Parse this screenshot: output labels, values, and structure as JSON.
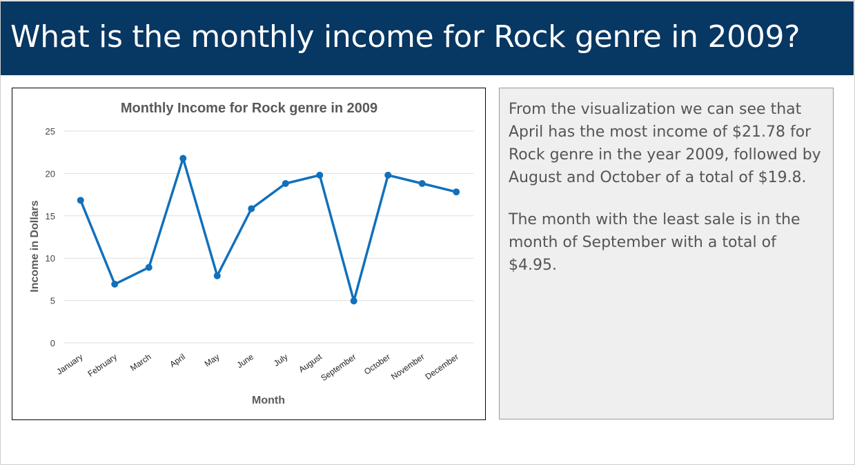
{
  "slide": {
    "title": "What is the monthly income for Rock genre in 2009?"
  },
  "panel": {
    "paragraph_1": "From the visualization we can see that April has the most income of $21.78 for Rock genre in the year 2009, followed by August and October of a total of $19.8.",
    "paragraph_2": "The month with the least sale is in the month of September with a total of $4.95."
  },
  "chart_data": {
    "type": "line",
    "title": "Monthly Income for Rock genre in 2009",
    "xlabel": "Month",
    "ylabel": "Income in Dollars",
    "categories": [
      "January",
      "February",
      "March",
      "April",
      "May",
      "June",
      "July",
      "August",
      "September",
      "October",
      "November",
      "December"
    ],
    "values": [
      16.83,
      6.93,
      8.91,
      21.78,
      7.92,
      15.84,
      18.81,
      19.8,
      4.95,
      19.8,
      18.81,
      17.82
    ],
    "ylim": [
      0,
      25
    ],
    "yticks": [
      0,
      5,
      10,
      15,
      20,
      25
    ],
    "grid": true,
    "legend": "none",
    "line_color": "#1170bb",
    "grid_color": "#dddddd"
  }
}
